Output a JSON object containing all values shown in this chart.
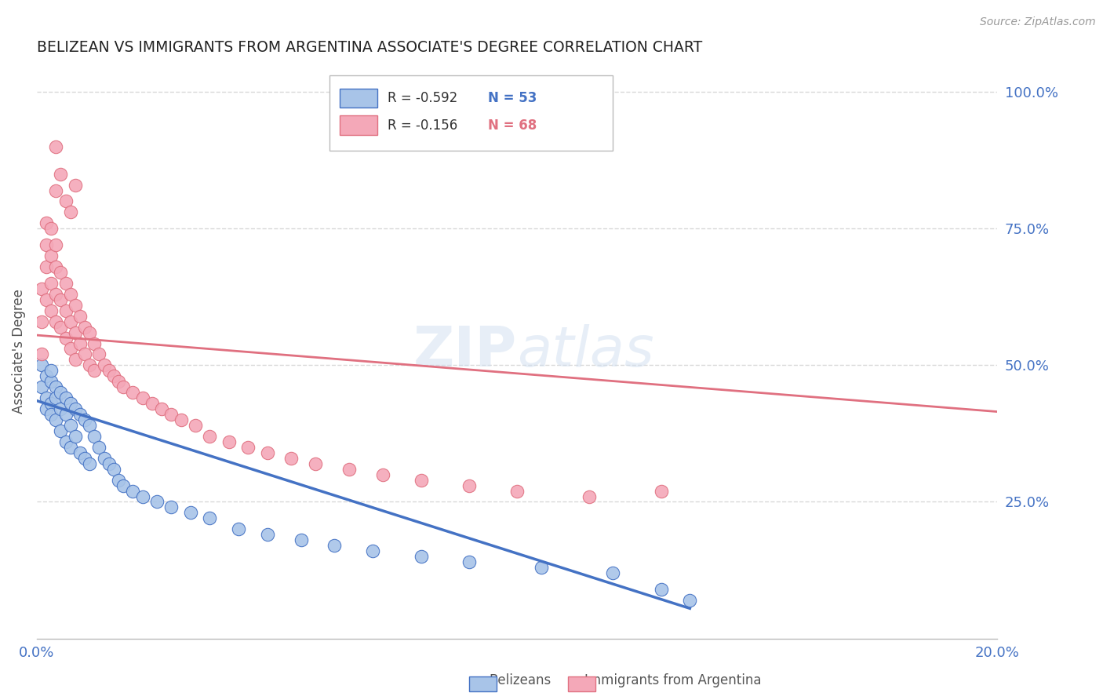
{
  "title": "BELIZEAN VS IMMIGRANTS FROM ARGENTINA ASSOCIATE'S DEGREE CORRELATION CHART",
  "source": "Source: ZipAtlas.com",
  "ylabel": "Associate's Degree",
  "right_yticks": [
    "100.0%",
    "75.0%",
    "50.0%",
    "25.0%"
  ],
  "right_ytick_vals": [
    1.0,
    0.75,
    0.5,
    0.25
  ],
  "watermark": "ZIPatlas",
  "legend_blue_r": "R = -0.592",
  "legend_blue_n": "N = 53",
  "legend_pink_r": "R = -0.156",
  "legend_pink_n": "N = 68",
  "blue_color": "#a8c4e8",
  "pink_color": "#f4a8b8",
  "blue_line_color": "#4472c4",
  "pink_line_color": "#e07080",
  "background_color": "#ffffff",
  "grid_color": "#d8d8d8",
  "title_color": "#222222",
  "axis_label_color": "#4472c4",
  "blue_trend_x": [
    0.0,
    0.136
  ],
  "blue_trend_y": [
    0.435,
    0.055
  ],
  "pink_trend_x": [
    0.0,
    0.2
  ],
  "pink_trend_y": [
    0.555,
    0.415
  ],
  "belizean_x": [
    0.001,
    0.001,
    0.002,
    0.002,
    0.002,
    0.003,
    0.003,
    0.003,
    0.003,
    0.004,
    0.004,
    0.004,
    0.005,
    0.005,
    0.005,
    0.006,
    0.006,
    0.006,
    0.007,
    0.007,
    0.007,
    0.008,
    0.008,
    0.009,
    0.009,
    0.01,
    0.01,
    0.011,
    0.011,
    0.012,
    0.013,
    0.014,
    0.015,
    0.016,
    0.017,
    0.018,
    0.02,
    0.022,
    0.025,
    0.028,
    0.032,
    0.036,
    0.042,
    0.048,
    0.055,
    0.062,
    0.07,
    0.08,
    0.09,
    0.105,
    0.12,
    0.13,
    0.136
  ],
  "belizean_y": [
    0.46,
    0.5,
    0.44,
    0.48,
    0.42,
    0.47,
    0.43,
    0.49,
    0.41,
    0.46,
    0.44,
    0.4,
    0.45,
    0.42,
    0.38,
    0.44,
    0.41,
    0.36,
    0.43,
    0.39,
    0.35,
    0.42,
    0.37,
    0.41,
    0.34,
    0.4,
    0.33,
    0.39,
    0.32,
    0.37,
    0.35,
    0.33,
    0.32,
    0.31,
    0.29,
    0.28,
    0.27,
    0.26,
    0.25,
    0.24,
    0.23,
    0.22,
    0.2,
    0.19,
    0.18,
    0.17,
    0.16,
    0.15,
    0.14,
    0.13,
    0.12,
    0.09,
    0.07
  ],
  "argentina_x": [
    0.001,
    0.001,
    0.001,
    0.002,
    0.002,
    0.002,
    0.002,
    0.003,
    0.003,
    0.003,
    0.003,
    0.004,
    0.004,
    0.004,
    0.004,
    0.005,
    0.005,
    0.005,
    0.006,
    0.006,
    0.006,
    0.007,
    0.007,
    0.007,
    0.008,
    0.008,
    0.008,
    0.009,
    0.009,
    0.01,
    0.01,
    0.011,
    0.011,
    0.012,
    0.012,
    0.013,
    0.014,
    0.015,
    0.016,
    0.017,
    0.018,
    0.02,
    0.022,
    0.024,
    0.026,
    0.028,
    0.03,
    0.033,
    0.036,
    0.04,
    0.044,
    0.048,
    0.053,
    0.058,
    0.065,
    0.072,
    0.08,
    0.09,
    0.1,
    0.115,
    0.13,
    0.004,
    0.004,
    0.005,
    0.006,
    0.007,
    0.008
  ],
  "argentina_y": [
    0.52,
    0.58,
    0.64,
    0.68,
    0.72,
    0.62,
    0.76,
    0.7,
    0.65,
    0.6,
    0.75,
    0.68,
    0.63,
    0.58,
    0.72,
    0.67,
    0.62,
    0.57,
    0.65,
    0.6,
    0.55,
    0.63,
    0.58,
    0.53,
    0.61,
    0.56,
    0.51,
    0.59,
    0.54,
    0.57,
    0.52,
    0.56,
    0.5,
    0.54,
    0.49,
    0.52,
    0.5,
    0.49,
    0.48,
    0.47,
    0.46,
    0.45,
    0.44,
    0.43,
    0.42,
    0.41,
    0.4,
    0.39,
    0.37,
    0.36,
    0.35,
    0.34,
    0.33,
    0.32,
    0.31,
    0.3,
    0.29,
    0.28,
    0.27,
    0.26,
    0.27,
    0.9,
    0.82,
    0.85,
    0.8,
    0.78,
    0.83
  ],
  "xlim": [
    0.0,
    0.2
  ],
  "ylim": [
    0.0,
    1.05
  ]
}
